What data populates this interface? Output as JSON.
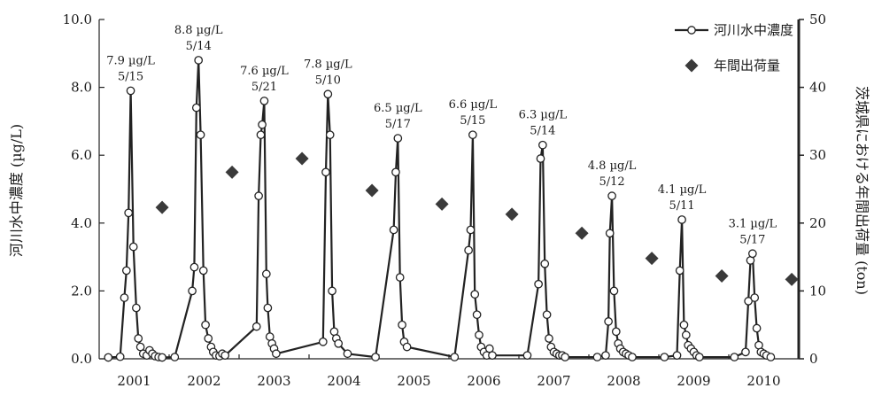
{
  "chart_data": {
    "type": "line",
    "title": "",
    "xlabel": "",
    "ylabel": "河川水中濃度 (µg/L)",
    "ylabel_right": "茨城県における年間出荷量 (ton)",
    "ylim": [
      0,
      10
    ],
    "ylim_right": [
      0,
      50
    ],
    "yticks": [
      "0.0",
      "2.0",
      "4.0",
      "6.0",
      "8.0",
      "10.0"
    ],
    "yticks_right": [
      "0",
      "10",
      "20",
      "30",
      "40",
      "50"
    ],
    "categories": [
      "2001",
      "2002",
      "2003",
      "2004",
      "2005",
      "2006",
      "2007",
      "2008",
      "2009",
      "2010"
    ],
    "legend_position": "top-right",
    "colors": {
      "line": "#222222",
      "marker_fill": "#ffffff",
      "diamond": "#3a3a3a"
    },
    "series": [
      {
        "name": "河川水中濃度",
        "axis": "left",
        "marker": "open-circle",
        "points": [
          [
            2000.43,
            0.04
          ],
          [
            2000.6,
            0.06
          ],
          [
            2000.66,
            1.8
          ],
          [
            2000.69,
            2.6
          ],
          [
            2000.72,
            4.3
          ],
          [
            2000.75,
            7.9
          ],
          [
            2000.79,
            3.3
          ],
          [
            2000.83,
            1.5
          ],
          [
            2000.86,
            0.6
          ],
          [
            2000.89,
            0.35
          ],
          [
            2000.93,
            0.15
          ],
          [
            2000.98,
            0.1
          ],
          [
            2001.02,
            0.25
          ],
          [
            2001.06,
            0.15
          ],
          [
            2001.1,
            0.08
          ],
          [
            2001.15,
            0.05
          ],
          [
            2001.2,
            0.04
          ],
          [
            2001.38,
            0.05
          ],
          [
            2001.63,
            2.0
          ],
          [
            2001.66,
            2.7
          ],
          [
            2001.69,
            7.4
          ],
          [
            2001.72,
            8.8
          ],
          [
            2001.75,
            6.6
          ],
          [
            2001.79,
            2.6
          ],
          [
            2001.82,
            1.0
          ],
          [
            2001.86,
            0.6
          ],
          [
            2001.9,
            0.35
          ],
          [
            2001.93,
            0.2
          ],
          [
            2001.97,
            0.1
          ],
          [
            2002.02,
            0.08
          ],
          [
            2002.06,
            0.15
          ],
          [
            2002.1,
            0.1
          ],
          [
            2002.55,
            0.95
          ],
          [
            2002.58,
            4.8
          ],
          [
            2002.61,
            6.6
          ],
          [
            2002.63,
            6.9
          ],
          [
            2002.66,
            7.6
          ],
          [
            2002.69,
            2.5
          ],
          [
            2002.71,
            1.5
          ],
          [
            2002.74,
            0.65
          ],
          [
            2002.77,
            0.45
          ],
          [
            2002.8,
            0.3
          ],
          [
            2002.83,
            0.15
          ],
          [
            2003.5,
            0.5
          ],
          [
            2003.54,
            5.5
          ],
          [
            2003.57,
            7.8
          ],
          [
            2003.6,
            6.6
          ],
          [
            2003.63,
            2.0
          ],
          [
            2003.66,
            0.8
          ],
          [
            2003.69,
            0.6
          ],
          [
            2003.72,
            0.45
          ],
          [
            2003.85,
            0.15
          ],
          [
            2004.25,
            0.05
          ],
          [
            2004.51,
            3.8
          ],
          [
            2004.54,
            5.5
          ],
          [
            2004.57,
            6.5
          ],
          [
            2004.6,
            2.4
          ],
          [
            2004.63,
            1.0
          ],
          [
            2004.66,
            0.5
          ],
          [
            2004.7,
            0.35
          ],
          [
            2005.38,
            0.05
          ],
          [
            2005.58,
            3.2
          ],
          [
            2005.61,
            3.8
          ],
          [
            2005.64,
            6.6
          ],
          [
            2005.67,
            1.9
          ],
          [
            2005.7,
            1.3
          ],
          [
            2005.73,
            0.7
          ],
          [
            2005.76,
            0.35
          ],
          [
            2005.8,
            0.2
          ],
          [
            2005.84,
            0.1
          ],
          [
            2005.88,
            0.3
          ],
          [
            2005.92,
            0.1
          ],
          [
            2006.42,
            0.1
          ],
          [
            2006.58,
            2.2
          ],
          [
            2006.61,
            5.9
          ],
          [
            2006.64,
            6.3
          ],
          [
            2006.67,
            2.8
          ],
          [
            2006.7,
            1.3
          ],
          [
            2006.73,
            0.6
          ],
          [
            2006.76,
            0.35
          ],
          [
            2006.8,
            0.2
          ],
          [
            2006.84,
            0.15
          ],
          [
            2006.88,
            0.1
          ],
          [
            2006.92,
            0.1
          ],
          [
            2006.96,
            0.05
          ],
          [
            2007.42,
            0.05
          ],
          [
            2007.54,
            0.1
          ],
          [
            2007.58,
            1.1
          ],
          [
            2007.6,
            3.7
          ],
          [
            2007.63,
            4.8
          ],
          [
            2007.66,
            2.0
          ],
          [
            2007.69,
            0.8
          ],
          [
            2007.72,
            0.45
          ],
          [
            2007.75,
            0.3
          ],
          [
            2007.79,
            0.2
          ],
          [
            2007.83,
            0.15
          ],
          [
            2007.87,
            0.1
          ],
          [
            2007.92,
            0.05
          ],
          [
            2008.38,
            0.05
          ],
          [
            2008.56,
            0.1
          ],
          [
            2008.6,
            2.6
          ],
          [
            2008.63,
            4.1
          ],
          [
            2008.66,
            1.0
          ],
          [
            2008.69,
            0.7
          ],
          [
            2008.72,
            0.4
          ],
          [
            2008.76,
            0.3
          ],
          [
            2008.8,
            0.2
          ],
          [
            2008.84,
            0.1
          ],
          [
            2008.88,
            0.05
          ],
          [
            2009.38,
            0.05
          ],
          [
            2009.54,
            0.2
          ],
          [
            2009.58,
            1.7
          ],
          [
            2009.61,
            2.9
          ],
          [
            2009.64,
            3.1
          ],
          [
            2009.67,
            1.8
          ],
          [
            2009.7,
            0.9
          ],
          [
            2009.73,
            0.4
          ],
          [
            2009.76,
            0.2
          ],
          [
            2009.8,
            0.15
          ],
          [
            2009.84,
            0.1
          ],
          [
            2009.9,
            0.05
          ]
        ]
      },
      {
        "name": "年間出荷量",
        "axis": "right",
        "marker": "diamond",
        "points": [
          [
            2001.2,
            22.3
          ],
          [
            2002.2,
            27.5
          ],
          [
            2003.2,
            29.5
          ],
          [
            2004.2,
            24.8
          ],
          [
            2005.2,
            22.8
          ],
          [
            2006.2,
            21.3
          ],
          [
            2007.2,
            18.5
          ],
          [
            2008.2,
            14.8
          ],
          [
            2009.2,
            12.2
          ],
          [
            2010.2,
            11.7
          ]
        ]
      }
    ],
    "peak_annotations": [
      {
        "x": 2000.75,
        "y": 7.9,
        "line1": "7.9 µg/L",
        "line2": "5/15"
      },
      {
        "x": 2001.72,
        "y": 8.8,
        "line1": "8.8 µg/L",
        "line2": "5/14"
      },
      {
        "x": 2002.66,
        "y": 7.6,
        "line1": "7.6 µg/L",
        "line2": "5/21"
      },
      {
        "x": 2003.57,
        "y": 7.8,
        "line1": "7.8 µg/L",
        "line2": "5/10"
      },
      {
        "x": 2004.57,
        "y": 6.5,
        "line1": "6.5 µg/L",
        "line2": "5/17"
      },
      {
        "x": 2005.64,
        "y": 6.6,
        "line1": "6.6 µg/L",
        "line2": "5/15"
      },
      {
        "x": 2006.64,
        "y": 6.3,
        "line1": "6.3 µg/L",
        "line2": "5/14"
      },
      {
        "x": 2007.63,
        "y": 4.8,
        "line1": "4.8 µg/L",
        "line2": "5/12"
      },
      {
        "x": 2008.63,
        "y": 4.1,
        "line1": "4.1 µg/L",
        "line2": "5/11"
      },
      {
        "x": 2009.64,
        "y": 3.1,
        "line1": "3.1 µg/L",
        "line2": "5/17"
      }
    ]
  }
}
